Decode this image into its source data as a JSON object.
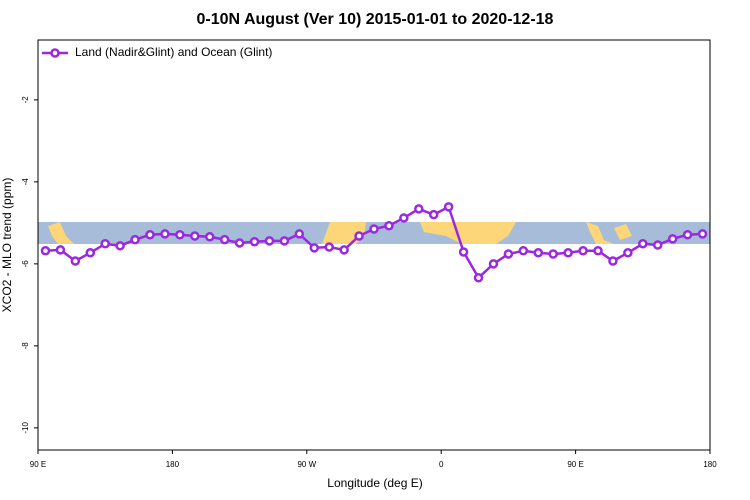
{
  "chart_data": {
    "type": "line",
    "title": "0-10N August (Ver 10)   2015-01-01 to 2020-12-18",
    "x_label": "Longitude (deg E)",
    "y_label": "XCO2 - MLO trend (ppm)",
    "x": [
      95,
      105,
      115,
      125,
      135,
      145,
      155,
      165,
      175,
      185,
      195,
      205,
      215,
      225,
      235,
      245,
      255,
      265,
      275,
      285,
      295,
      305,
      315,
      325,
      335,
      345,
      355,
      365,
      375,
      385,
      395,
      405,
      415,
      425,
      435,
      445,
      455,
      465,
      475,
      485,
      495,
      505,
      515,
      525,
      535
    ],
    "series": [
      {
        "name": "Land (Nadir&Glint) and Ocean (Glint)",
        "color": "#9b27e0",
        "values": [
          -5.68,
          -5.66,
          -5.93,
          -5.73,
          -5.51,
          -5.56,
          -5.41,
          -5.29,
          -5.27,
          -5.29,
          -5.32,
          -5.34,
          -5.41,
          -5.49,
          -5.46,
          -5.44,
          -5.44,
          -5.27,
          -5.61,
          -5.59,
          -5.66,
          -5.32,
          -5.15,
          -5.07,
          -4.88,
          -4.66,
          -4.8,
          -4.61,
          -5.71,
          -6.34,
          -6.0,
          -5.76,
          -5.68,
          -5.73,
          -5.76,
          -5.73,
          -5.68,
          -5.68,
          -5.93,
          -5.73,
          -5.51,
          -5.54,
          -5.39,
          -5.29,
          -5.27
        ]
      }
    ],
    "xlim": [
      90,
      540
    ],
    "xticks": [
      {
        "value": 90,
        "label": "90 E"
      },
      {
        "value": 180,
        "label": "180"
      },
      {
        "value": 270,
        "label": "90 W"
      },
      {
        "value": 360,
        "label": "0"
      },
      {
        "value": 450,
        "label": "90 E"
      },
      {
        "value": 540,
        "label": "180"
      }
    ],
    "ylim": [
      -10.54,
      -0.54
    ],
    "yticks": [
      -10,
      -8,
      -6,
      -4,
      -2
    ],
    "legend": "upper left"
  }
}
